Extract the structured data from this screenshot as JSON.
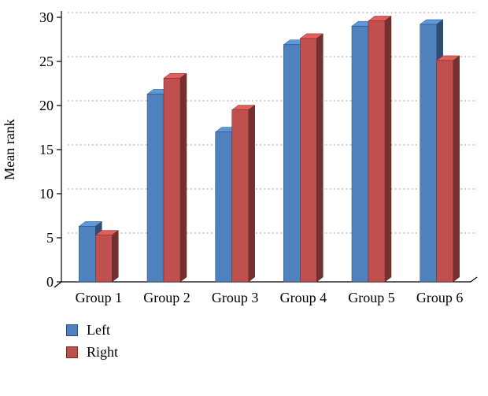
{
  "chart_data": {
    "type": "bar",
    "subtype": "3d-clustered-column",
    "title": "",
    "xlabel": "",
    "ylabel": "Mean rank",
    "categories": [
      "Group 1",
      "Group 2",
      "Group 3",
      "Group 4",
      "Group 5",
      "Group 6"
    ],
    "series": [
      {
        "name": "Left",
        "color": "#4f81bd",
        "values": [
          6.3,
          21.3,
          17.0,
          26.9,
          29.0,
          29.2
        ]
      },
      {
        "name": "Right",
        "color": "#c0504d",
        "values": [
          5.3,
          23.1,
          19.5,
          27.6,
          29.6,
          25.1
        ]
      }
    ],
    "ylim": [
      0,
      30
    ],
    "yticks": [
      0,
      5,
      10,
      15,
      20,
      25,
      30
    ],
    "grid": "dotted-horizontal",
    "legend_position": "bottom-left",
    "background": "#ffffff",
    "axis_color": "#000000",
    "grid_color": "#8a8a8a"
  }
}
